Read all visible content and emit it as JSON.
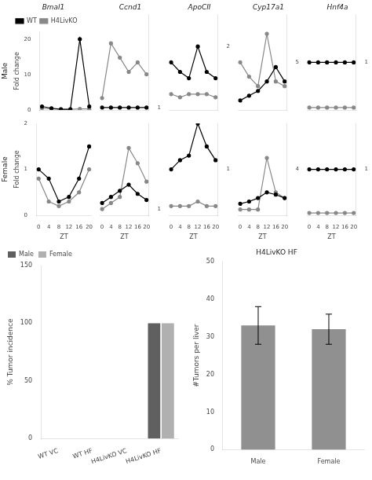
{
  "chart_data": [
    {
      "type": "line",
      "title": "Bmal1",
      "ylabel": "Fold change",
      "annotations": [
        "Male"
      ],
      "x": [
        0,
        4,
        8,
        12,
        16,
        20
      ],
      "series": [
        {
          "name": "WT",
          "color": "#000000",
          "marker": "circle",
          "values": [
            1.0,
            0.5,
            0.2,
            0.2,
            20.0,
            1.0
          ]
        },
        {
          "name": "H4LivKO",
          "color": "#888888",
          "marker": "circle",
          "values": [
            0.5,
            0.3,
            0.2,
            0.2,
            0.3,
            0.3
          ]
        }
      ],
      "xlim": [
        -1,
        21
      ],
      "xticks": [
        0,
        4,
        8,
        12,
        16,
        20
      ],
      "ylim": [
        0,
        22
      ],
      "yticks": [
        0,
        10,
        20
      ],
      "grid": false,
      "tick_labels": "y",
      "legend": "upper left"
    },
    {
      "type": "line",
      "title": "Ccnd1",
      "x": [
        0,
        4,
        8,
        12,
        16,
        20
      ],
      "series": [
        {
          "name": "WT",
          "color": "#000000",
          "marker": "circle",
          "values": [
            1.0,
            1.0,
            1.0,
            1.0,
            1.0,
            1.0
          ]
        },
        {
          "name": "H4LivKO",
          "color": "#888888",
          "marker": "circle",
          "values": [
            5.0,
            28.0,
            22.0,
            16.0,
            20.0,
            15.0
          ]
        }
      ],
      "xlim": [
        -1,
        21
      ],
      "xticks": [
        0,
        4,
        8,
        12,
        16,
        20
      ],
      "ylim": [
        0,
        40
      ],
      "yticks": [
        1
      ],
      "grid": false,
      "tick_labels": "y"
    },
    {
      "type": "line",
      "title": "ApoCII",
      "x": [
        0,
        4,
        8,
        12,
        16,
        20
      ],
      "series": [
        {
          "name": "WT",
          "color": "#000000",
          "marker": "circle",
          "values": [
            1.5,
            1.2,
            1.0,
            2.0,
            1.2,
            1.0
          ]
        },
        {
          "name": "H4LivKO",
          "color": "#888888",
          "marker": "circle",
          "values": [
            0.5,
            0.4,
            0.5,
            0.5,
            0.5,
            0.4
          ]
        }
      ],
      "xlim": [
        -1,
        21
      ],
      "xticks": [
        0,
        4,
        8,
        12,
        16,
        20
      ],
      "ylim": [
        0,
        3
      ],
      "yticks": [
        2
      ],
      "grid": false,
      "tick_labels": "y"
    },
    {
      "type": "line",
      "title": "Cyp17a1",
      "x": [
        0,
        4,
        8,
        12,
        16,
        20
      ],
      "series": [
        {
          "name": "WT",
          "color": "#000000",
          "marker": "circle",
          "values": [
            1.0,
            1.5,
            2.0,
            3.0,
            4.5,
            3.0
          ]
        },
        {
          "name": "H4LivKO",
          "color": "#888888",
          "marker": "circle",
          "values": [
            5.0,
            3.5,
            2.5,
            8.0,
            3.0,
            2.5
          ]
        }
      ],
      "xlim": [
        -1,
        21
      ],
      "xticks": [
        0,
        4,
        8,
        12,
        16,
        20
      ],
      "ylim": [
        0,
        10
      ],
      "yticks": [
        5
      ],
      "grid": false,
      "tick_labels": "y"
    },
    {
      "type": "line",
      "title": "Hnf4a",
      "x": [
        0,
        4,
        8,
        12,
        16,
        20
      ],
      "series": [
        {
          "name": "WT",
          "color": "#000000",
          "marker": "circle",
          "values": [
            1.0,
            1.0,
            1.0,
            1.0,
            1.0,
            1.0
          ]
        },
        {
          "name": "H4LivKO",
          "color": "#888888",
          "marker": "circle",
          "values": [
            0.05,
            0.05,
            0.05,
            0.05,
            0.05,
            0.05
          ]
        }
      ],
      "xlim": [
        -1,
        21
      ],
      "xticks": [
        0,
        4,
        8,
        12,
        16,
        20
      ],
      "ylim": [
        0,
        2
      ],
      "yticks": [
        1
      ],
      "grid": false,
      "tick_labels": "y"
    },
    {
      "type": "line",
      "xlabel": "ZT",
      "ylabel": "Fold change",
      "annotations": [
        "Female"
      ],
      "x": [
        0,
        4,
        8,
        12,
        16,
        20
      ],
      "series": [
        {
          "name": "WT",
          "color": "#000000",
          "marker": "circle",
          "values": [
            1.0,
            0.8,
            0.3,
            0.4,
            0.8,
            1.5
          ]
        },
        {
          "name": "H4LivKO",
          "color": "#888888",
          "marker": "circle",
          "values": [
            0.8,
            0.3,
            0.2,
            0.3,
            0.5,
            1.0
          ]
        }
      ],
      "xlim": [
        -1,
        21
      ],
      "xticks": [
        0,
        4,
        8,
        12,
        16,
        20
      ],
      "ylim": [
        0,
        2
      ],
      "yticks": [
        0,
        1,
        2
      ],
      "grid": false
    },
    {
      "type": "line",
      "xlabel": "ZT",
      "x": [
        0,
        4,
        8,
        12,
        16,
        20
      ],
      "series": [
        {
          "name": "WT",
          "color": "#000000",
          "marker": "circle",
          "values": [
            2.0,
            3.0,
            4.0,
            5.0,
            3.5,
            2.5
          ]
        },
        {
          "name": "H4LivKO",
          "color": "#888888",
          "marker": "circle",
          "values": [
            1.0,
            2.0,
            3.0,
            11.0,
            8.5,
            5.5
          ]
        }
      ],
      "xlim": [
        -1,
        21
      ],
      "xticks": [
        0,
        4,
        8,
        12,
        16,
        20
      ],
      "ylim": [
        0,
        15
      ],
      "yticks": [
        1
      ],
      "grid": false
    },
    {
      "type": "line",
      "xlabel": "ZT",
      "x": [
        0,
        4,
        8,
        12,
        16,
        20
      ],
      "series": [
        {
          "name": "WT",
          "color": "#000000",
          "marker": "circle",
          "values": [
            1.0,
            1.2,
            1.3,
            2.0,
            1.5,
            1.2
          ]
        },
        {
          "name": "H4LivKO",
          "color": "#888888",
          "marker": "circle",
          "values": [
            0.2,
            0.2,
            0.2,
            0.3,
            0.2,
            0.2
          ]
        }
      ],
      "xlim": [
        -1,
        21
      ],
      "xticks": [
        0,
        4,
        8,
        12,
        16,
        20
      ],
      "ylim": [
        0,
        2
      ],
      "yticks": [
        1
      ],
      "grid": false
    },
    {
      "type": "line",
      "xlabel": "ZT",
      "x": [
        0,
        4,
        8,
        12,
        16,
        20
      ],
      "series": [
        {
          "name": "WT",
          "color": "#000000",
          "marker": "circle",
          "values": [
            1.0,
            1.2,
            1.5,
            2.0,
            1.8,
            1.5
          ]
        },
        {
          "name": "H4LivKO",
          "color": "#888888",
          "marker": "circle",
          "values": [
            0.5,
            0.5,
            0.5,
            5.0,
            2.0,
            1.5
          ]
        }
      ],
      "xlim": [
        -1,
        21
      ],
      "xticks": [
        0,
        4,
        8,
        12,
        16,
        20
      ],
      "ylim": [
        0,
        8
      ],
      "yticks": [
        4
      ],
      "grid": false
    },
    {
      "type": "line",
      "xlabel": "ZT",
      "x": [
        0,
        4,
        8,
        12,
        16,
        20
      ],
      "series": [
        {
          "name": "WT",
          "color": "#000000",
          "marker": "circle",
          "values": [
            1.0,
            1.0,
            1.0,
            1.0,
            1.0,
            1.0
          ]
        },
        {
          "name": "H4LivKO",
          "color": "#888888",
          "marker": "circle",
          "values": [
            0.05,
            0.05,
            0.05,
            0.05,
            0.05,
            0.05
          ]
        }
      ],
      "xlim": [
        -1,
        21
      ],
      "xticks": [
        0,
        4,
        8,
        12,
        16,
        20
      ],
      "ylim": [
        0,
        2
      ],
      "yticks": [
        1
      ],
      "grid": false
    },
    {
      "type": "bar",
      "ylabel": "% Tumor incidence",
      "categories": [
        "WT VC",
        "WT HF",
        "H4LivKO VC",
        "H4LivKO HF"
      ],
      "series": [
        {
          "name": "Male",
          "color": "#606060",
          "values": [
            0,
            0,
            0,
            100
          ]
        },
        {
          "name": "Female",
          "color": "#b0b0b0",
          "values": [
            0,
            0,
            0,
            100
          ]
        }
      ],
      "ylim": [
        0,
        150
      ],
      "yticks": [
        0,
        50,
        100,
        150
      ],
      "grid": false,
      "legend": "upper left"
    },
    {
      "type": "bar",
      "title": "H4LivKO HF",
      "ylabel": "#Tumors per liver",
      "categories": [
        "Male",
        "Female"
      ],
      "values": [
        33,
        32
      ],
      "errors": [
        5,
        4
      ],
      "color": "#909090",
      "ylim": [
        0,
        50
      ],
      "yticks": [
        0,
        10,
        20,
        30,
        40,
        50
      ],
      "grid": false
    }
  ]
}
